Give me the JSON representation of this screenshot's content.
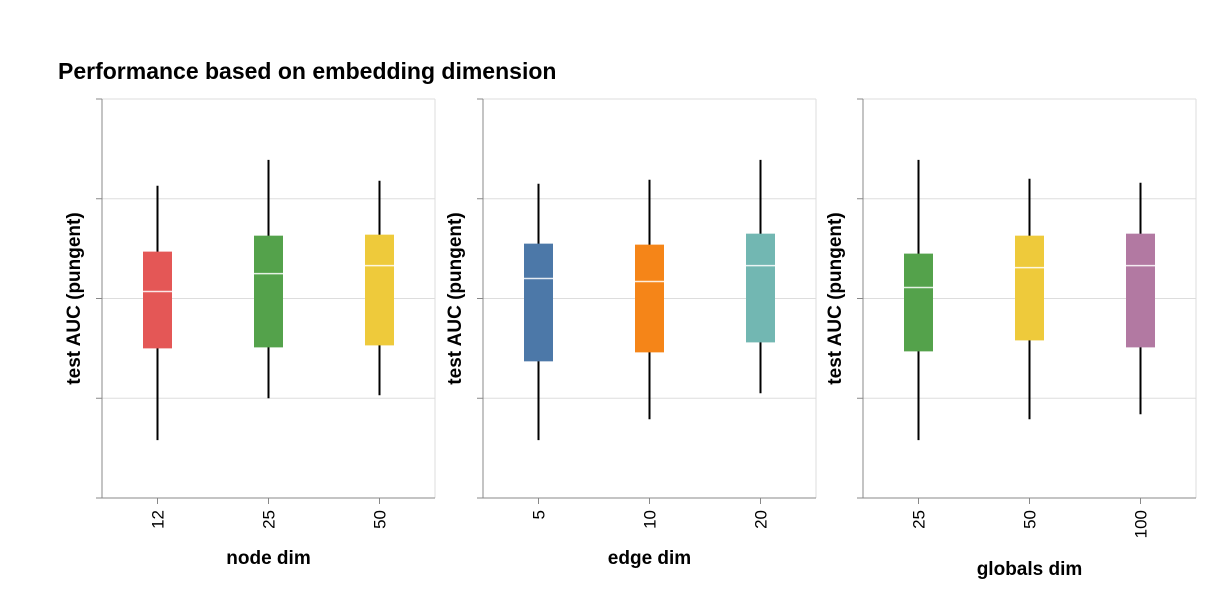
{
  "chart_data": {
    "title": "Performance based on embedding dimension",
    "type": "boxplot",
    "ylabel": "test AUC (pungent)",
    "ylim": [
      0,
      4
    ],
    "y_ticks": [
      0,
      1,
      2,
      3,
      4
    ],
    "y_tick_labels_visible": false,
    "grid": true,
    "legend": "none",
    "panels": [
      {
        "xlabel": "node dim",
        "categories": [
          "12",
          "25",
          "50"
        ],
        "colors": [
          "#e45756",
          "#54a24b",
          "#eeca3b"
        ],
        "boxes": [
          {
            "min": 0.58,
            "q1": 1.5,
            "median": 2.07,
            "q3": 2.47,
            "max": 3.13
          },
          {
            "min": 1.0,
            "q1": 1.51,
            "median": 2.25,
            "q3": 2.63,
            "max": 3.39
          },
          {
            "min": 1.03,
            "q1": 1.53,
            "median": 2.33,
            "q3": 2.64,
            "max": 3.18
          }
        ]
      },
      {
        "xlabel": "edge dim",
        "categories": [
          "5",
          "10",
          "20"
        ],
        "colors": [
          "#4c78a8",
          "#f58518",
          "#72b7b2"
        ],
        "boxes": [
          {
            "min": 0.58,
            "q1": 1.37,
            "median": 2.2,
            "q3": 2.55,
            "max": 3.15
          },
          {
            "min": 0.79,
            "q1": 1.46,
            "median": 2.17,
            "q3": 2.54,
            "max": 3.19
          },
          {
            "min": 1.05,
            "q1": 1.56,
            "median": 2.33,
            "q3": 2.65,
            "max": 3.39
          }
        ]
      },
      {
        "xlabel": "globals dim",
        "categories": [
          "25",
          "50",
          "100"
        ],
        "colors": [
          "#54a24b",
          "#eeca3b",
          "#b279a2"
        ],
        "boxes": [
          {
            "min": 0.58,
            "q1": 1.47,
            "median": 2.11,
            "q3": 2.45,
            "max": 3.39
          },
          {
            "min": 0.79,
            "q1": 1.58,
            "median": 2.31,
            "q3": 2.63,
            "max": 3.2
          },
          {
            "min": 0.84,
            "q1": 1.51,
            "median": 2.33,
            "q3": 2.65,
            "max": 3.16
          }
        ]
      }
    ]
  }
}
